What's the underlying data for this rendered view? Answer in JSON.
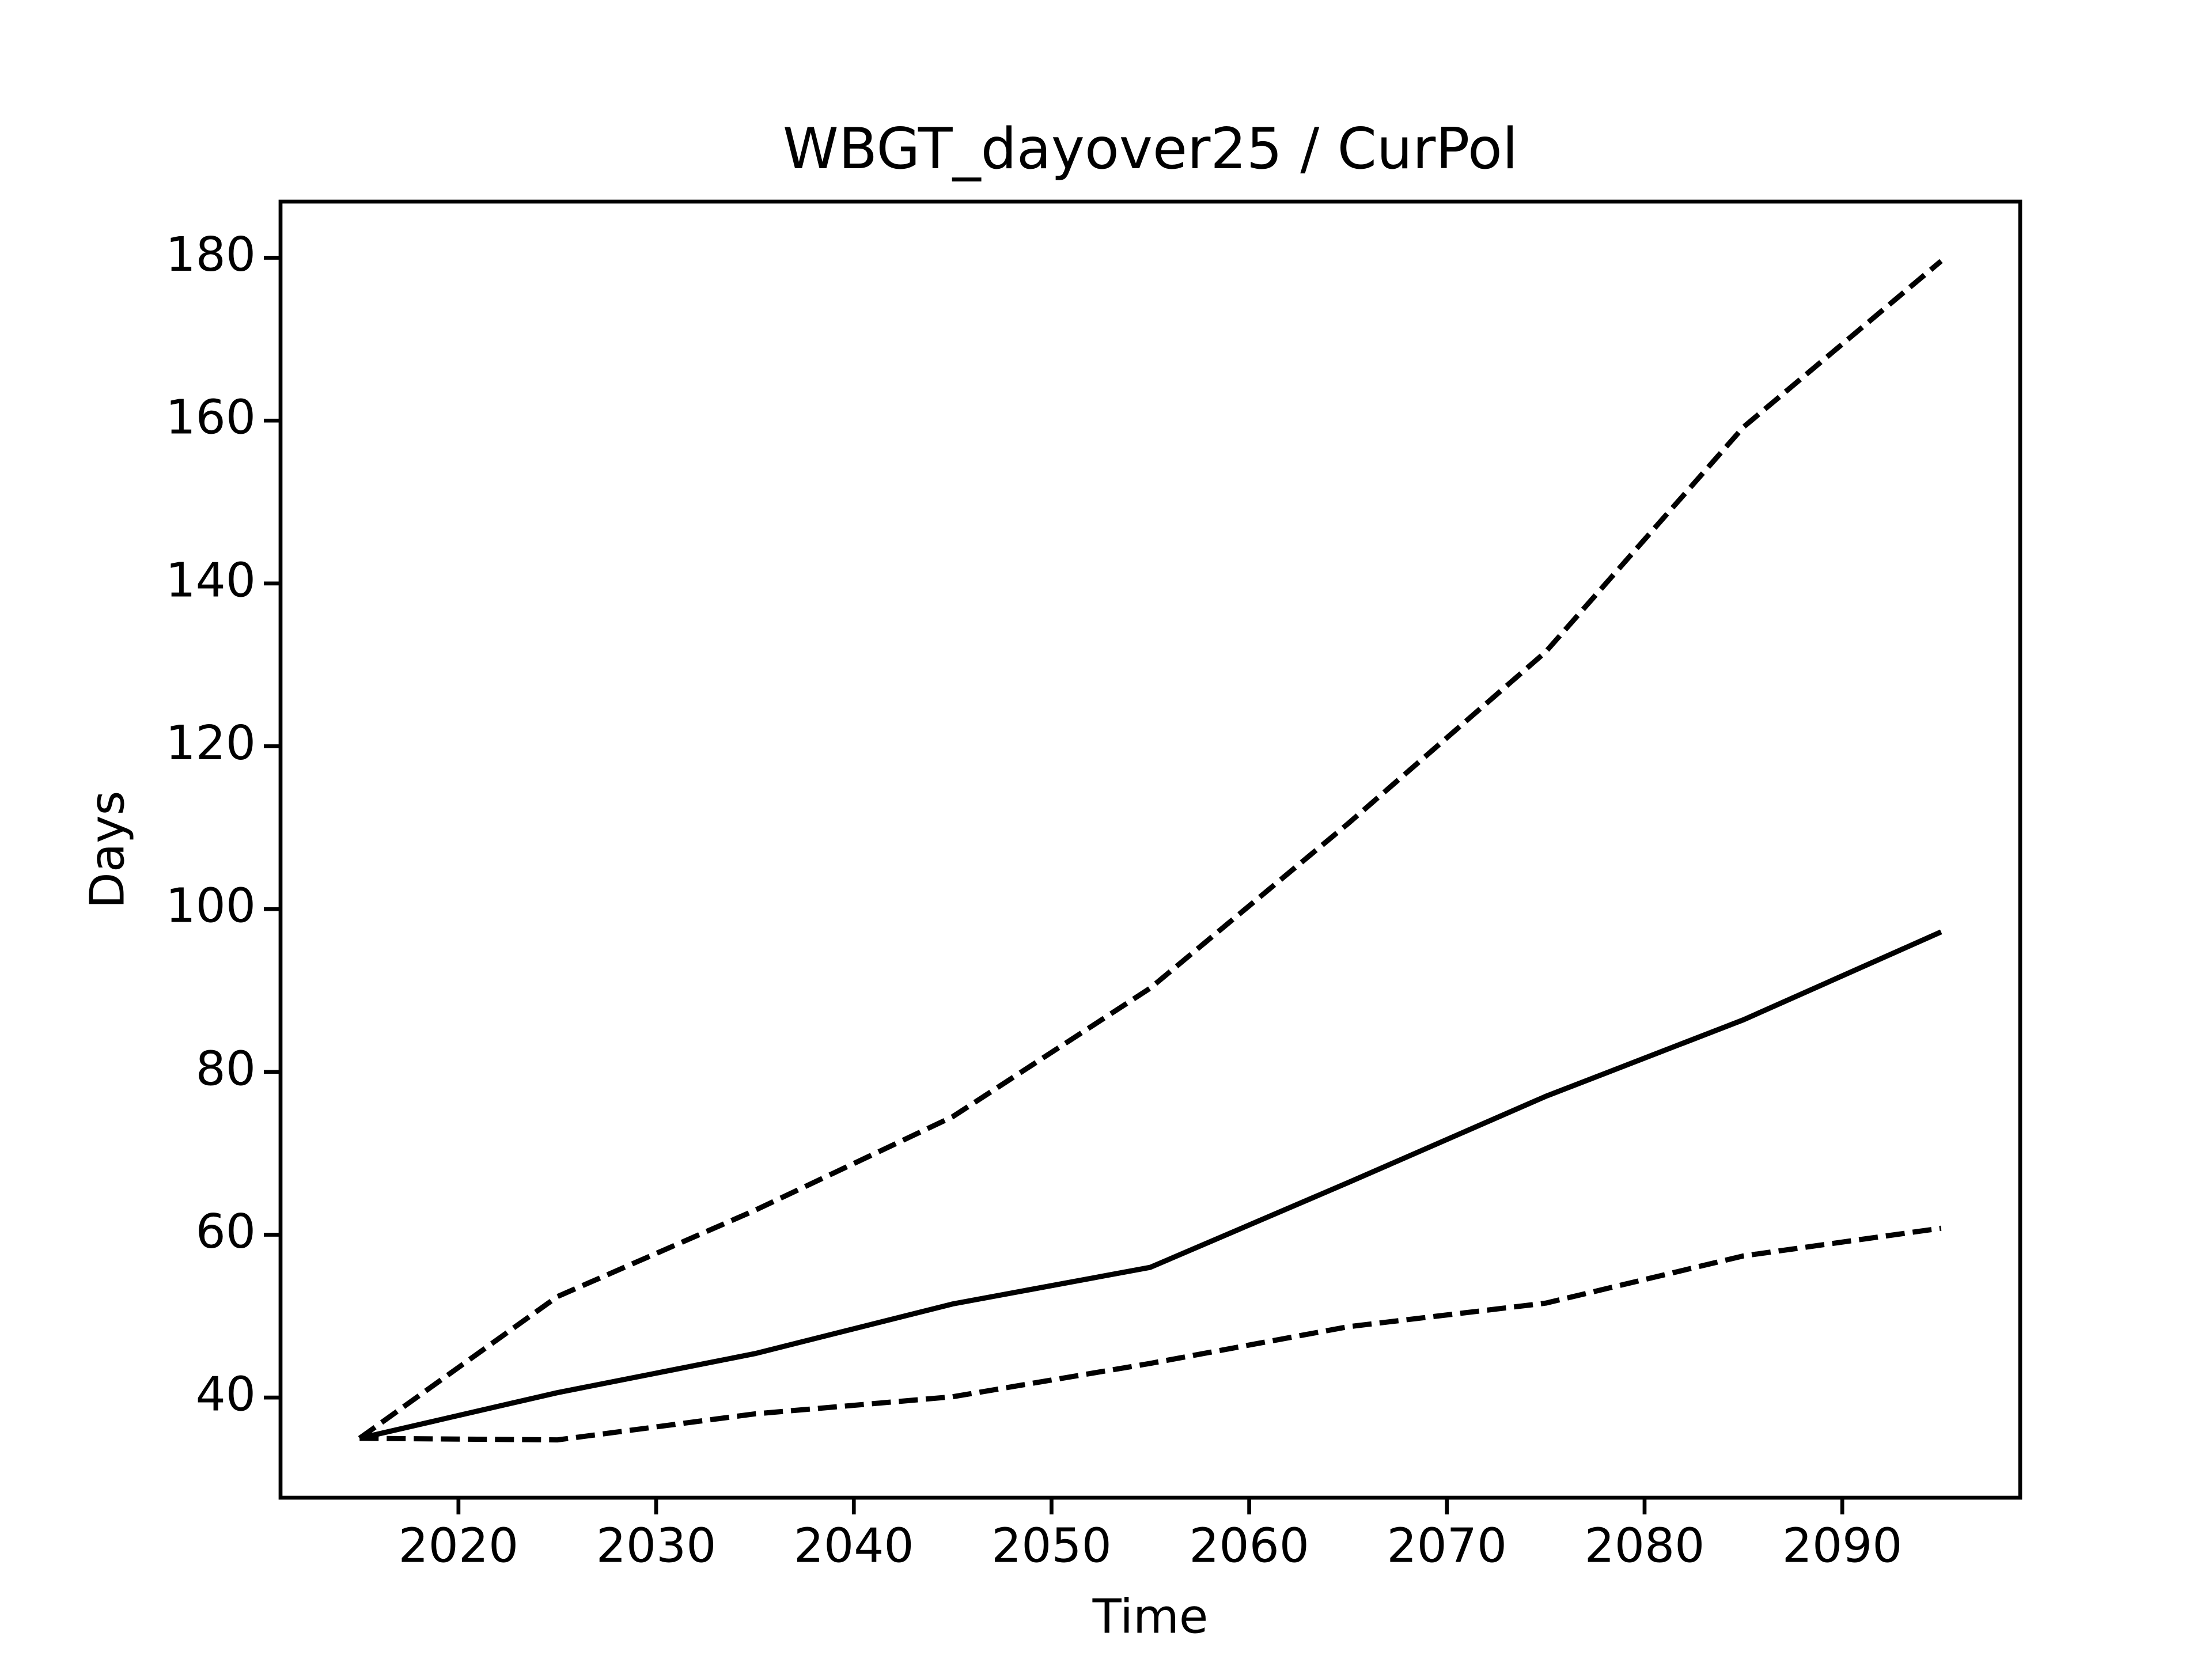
{
  "chart_data": {
    "type": "line",
    "title": "WBGT_dayover25 / CurPol",
    "x_label": "Time",
    "y_label": "Days",
    "x": [
      2015,
      2025,
      2035,
      2045,
      2055,
      2065,
      2075,
      2085,
      2095
    ],
    "series": [
      {
        "color": "#000000",
        "dashed": true,
        "values": [
          35,
          52.4,
          63,
          74.5,
          90.3,
          110.5,
          131.6,
          159.2,
          179.6
        ]
      },
      {
        "color": "#000000",
        "dashed": false,
        "values": [
          35,
          40.6,
          45.4,
          51.5,
          56,
          66.4,
          77,
          86.4,
          97.2
        ]
      },
      {
        "color": "#000000",
        "dashed": true,
        "values": [
          35,
          34.8,
          38,
          40.1,
          44.2,
          48.7,
          51.6,
          57.4,
          60.8
        ]
      }
    ],
    "xlim": [
      2011,
      2099
    ],
    "xticks": [
      2020,
      2030,
      2040,
      2050,
      2060,
      2070,
      2080,
      2090
    ],
    "ylim": [
      27.7,
      186.9
    ],
    "yticks": [
      40,
      60,
      80,
      100,
      120,
      140,
      160,
      180
    ],
    "grid": false
  }
}
